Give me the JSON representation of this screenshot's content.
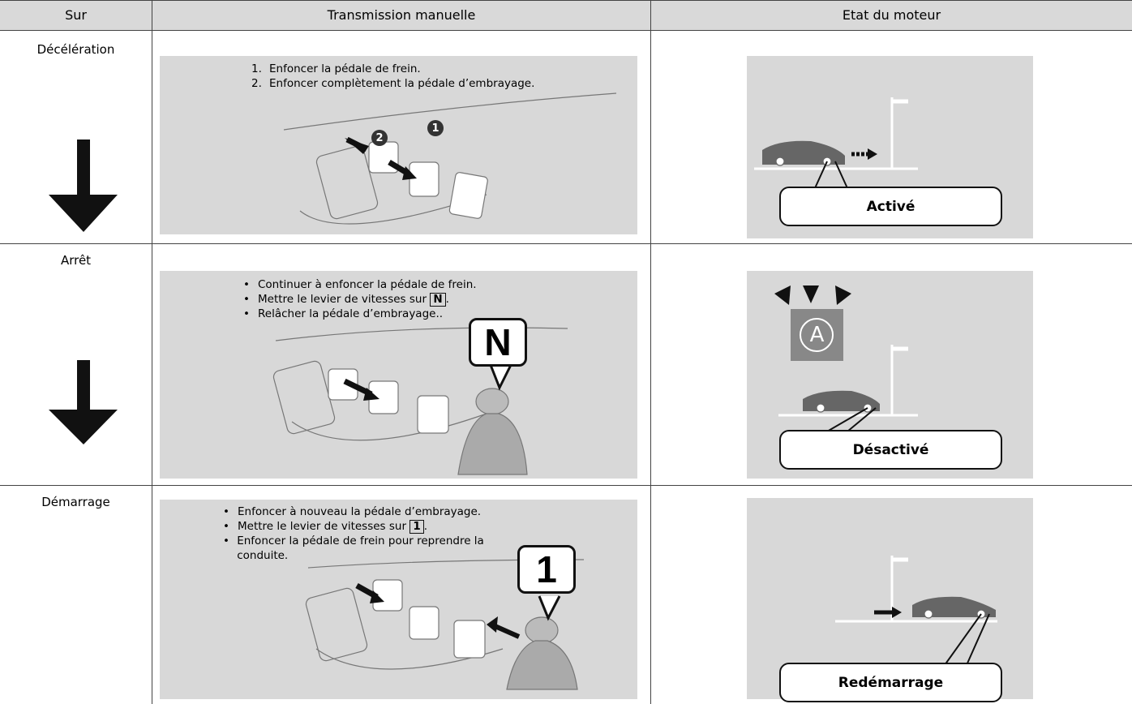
{
  "table": {
    "headers": [
      "Sur",
      "Transmission manuelle",
      "Etat du moteur"
    ],
    "rows": [
      {
        "stage": "Décélération",
        "steps": [
          {
            "marker": "1.",
            "text": "Enfoncer la pédale de frein."
          },
          {
            "marker": "2.",
            "text": "Enfoncer complètement la pédale d’embrayage."
          }
        ],
        "callouts": [
          "2",
          "1"
        ],
        "status": "Activé"
      },
      {
        "stage": "Arrêt",
        "steps": [
          {
            "text": "Continuer à enfoncer la pédale de frein."
          },
          {
            "text": "Mettre le levier de vitesses sur",
            "key": "N",
            "end": "."
          },
          {
            "text": "Relâcher la pédale d’embrayage.."
          }
        ],
        "gear": "N",
        "icon": "A",
        "status": "Désactivé"
      },
      {
        "stage": "Démarrage",
        "steps": [
          {
            "text": "Enfoncer à nouveau la pédale d’embrayage."
          },
          {
            "text": "Mettre le levier de vitesses sur",
            "key": "1",
            "end": "."
          },
          {
            "text": "Enfoncer la pédale de frein pour reprendre la conduite."
          }
        ],
        "gear": "1",
        "status": "Redémarrage"
      }
    ]
  }
}
